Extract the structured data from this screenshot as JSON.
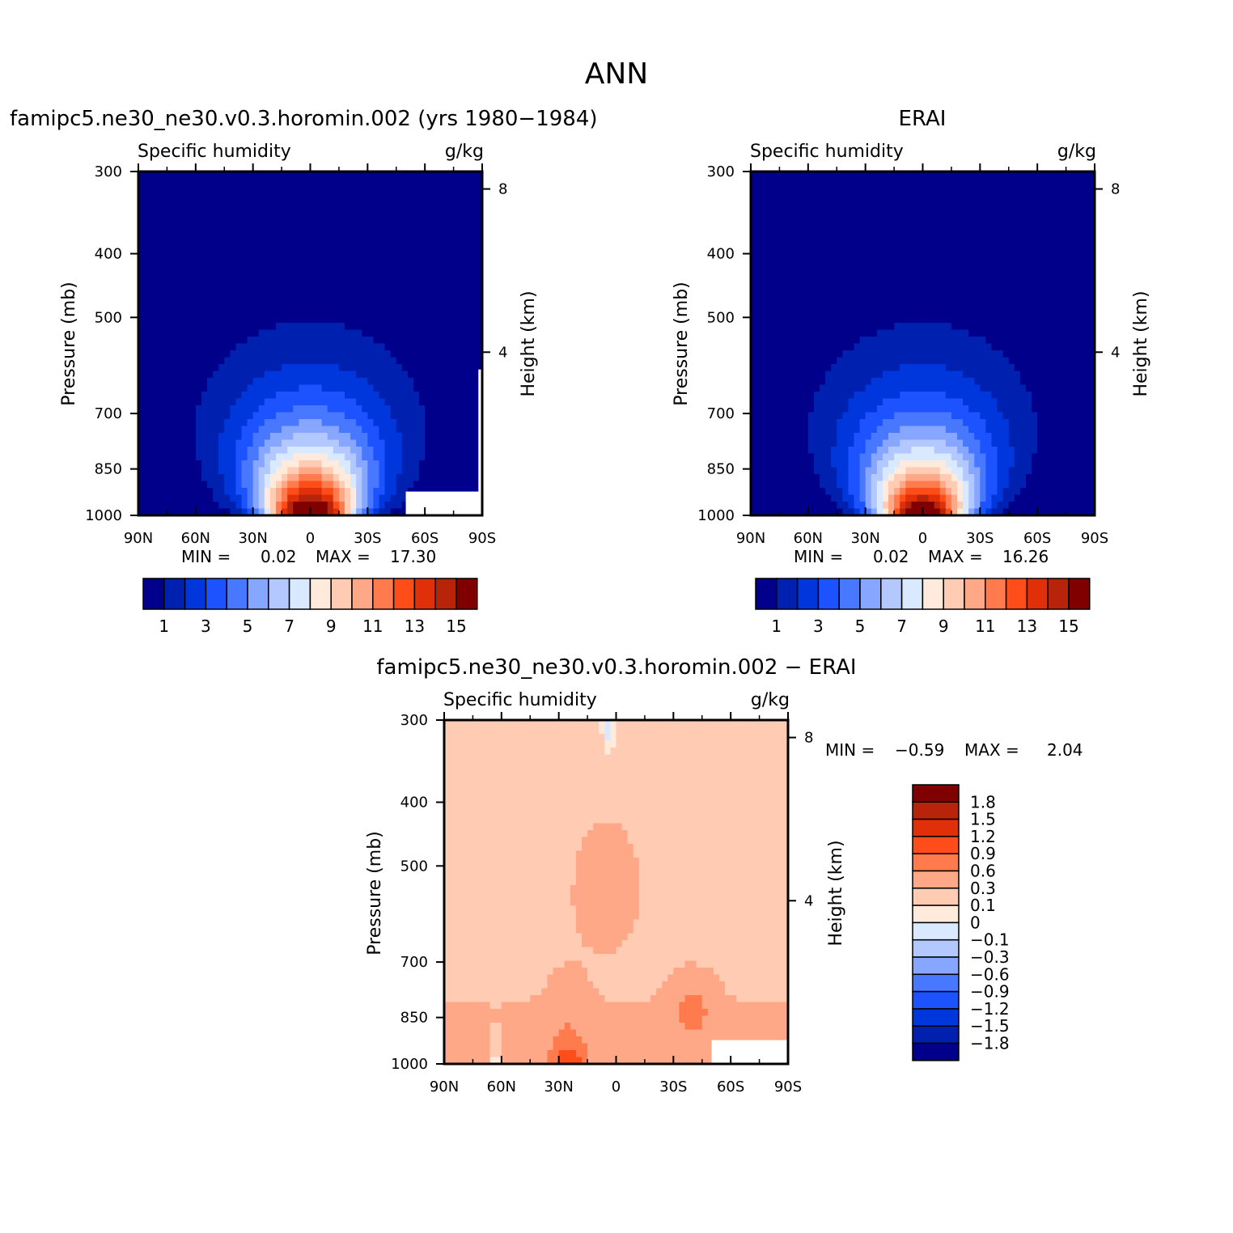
{
  "main_title": "ANN",
  "colors": {
    "abs_scale": [
      "#00008b",
      "#0020b0",
      "#0037dc",
      "#1c52ff",
      "#4878ff",
      "#86a6ff",
      "#b3c8ff",
      "#d9e9ff",
      "#ffeadb",
      "#ffcbb3",
      "#ffa888",
      "#ff7a4c",
      "#ff4d1a",
      "#e0300a",
      "#b8240a",
      "#800000"
    ],
    "diff_scale": [
      "#00008b",
      "#0020b0",
      "#0037dc",
      "#1c52ff",
      "#4878ff",
      "#86a6ff",
      "#b3c8ff",
      "#d9e9ff",
      "#ffeadb",
      "#ffcbb3",
      "#ffa888",
      "#ff7a4c",
      "#ff4d1a",
      "#e0300a",
      "#b8240a",
      "#800000"
    ]
  },
  "chart_data": [
    {
      "type": "heatmap",
      "title": "famipc5.ne30_ne30.v0.3.horomin.002 (yrs 1980−1984)",
      "left_string": "Specific humidity",
      "right_string": "g/kg",
      "xlabel": "",
      "ylabel": "Pressure (mb)",
      "y2label": "Height (km)",
      "x_tick_labels": [
        "90N",
        "60N",
        "30N",
        "0",
        "30S",
        "60S",
        "90S"
      ],
      "x_range": [
        90,
        -90
      ],
      "y_tick_labels": [
        "300",
        "400",
        "500",
        "700",
        "850",
        "1000"
      ],
      "y_range_mb": [
        1000,
        300
      ],
      "y_scale": "log",
      "y2_tick_labels": [
        "8",
        "4"
      ],
      "min_label": "MIN =",
      "min_value": "0.02",
      "max_label": "MAX =",
      "max_value": "17.30",
      "colorbar_labels": [
        "1",
        "3",
        "5",
        "7",
        "9",
        "11",
        "13",
        "15"
      ],
      "contour_levels": [
        1,
        2,
        3,
        4,
        5,
        6,
        7,
        8,
        9,
        10,
        11,
        12,
        13,
        14,
        15
      ],
      "peak_latitude": 0,
      "peak_value": 17.3
    },
    {
      "type": "heatmap",
      "title": "ERAI",
      "left_string": "Specific humidity",
      "right_string": "g/kg",
      "xlabel": "",
      "ylabel": "Pressure (mb)",
      "y2label": "Height (km)",
      "x_tick_labels": [
        "90N",
        "60N",
        "30N",
        "0",
        "30S",
        "60S",
        "90S"
      ],
      "x_range": [
        90,
        -90
      ],
      "y_tick_labels": [
        "300",
        "400",
        "500",
        "700",
        "850",
        "1000"
      ],
      "y_range_mb": [
        1000,
        300
      ],
      "y_scale": "log",
      "y2_tick_labels": [
        "8",
        "4"
      ],
      "min_label": "MIN =",
      "min_value": "0.02",
      "max_label": "MAX =",
      "max_value": "16.26",
      "colorbar_labels": [
        "1",
        "3",
        "5",
        "7",
        "9",
        "11",
        "13",
        "15"
      ],
      "contour_levels": [
        1,
        2,
        3,
        4,
        5,
        6,
        7,
        8,
        9,
        10,
        11,
        12,
        13,
        14,
        15
      ],
      "peak_latitude": 0,
      "peak_value": 16.26
    },
    {
      "type": "heatmap",
      "title": "famipc5.ne30_ne30.v0.3.horomin.002 − ERAI",
      "left_string": "Specific humidity",
      "right_string": "g/kg",
      "xlabel": "",
      "ylabel": "Pressure (mb)",
      "y2label": "Height (km)",
      "x_tick_labels": [
        "90N",
        "60N",
        "30N",
        "0",
        "30S",
        "60S",
        "90S"
      ],
      "x_range": [
        90,
        -90
      ],
      "y_tick_labels": [
        "300",
        "400",
        "500",
        "700",
        "850",
        "1000"
      ],
      "y_range_mb": [
        1000,
        300
      ],
      "y_scale": "log",
      "y2_tick_labels": [
        "8",
        "4"
      ],
      "min_label": "MIN =",
      "min_value": "−0.59",
      "max_label": "MAX =",
      "max_value": "2.04",
      "colorbar_labels": [
        "1.8",
        "1.5",
        "1.2",
        "0.9",
        "0.6",
        "0.3",
        "0.1",
        "0",
        "−0.1",
        "−0.3",
        "−0.6",
        "−0.9",
        "−1.2",
        "−1.5",
        "−1.8"
      ],
      "contour_levels": [
        -1.8,
        -1.5,
        -1.2,
        -0.9,
        -0.6,
        -0.3,
        -0.1,
        0,
        0.1,
        0.3,
        0.6,
        0.9,
        1.2,
        1.5,
        1.8
      ]
    }
  ]
}
